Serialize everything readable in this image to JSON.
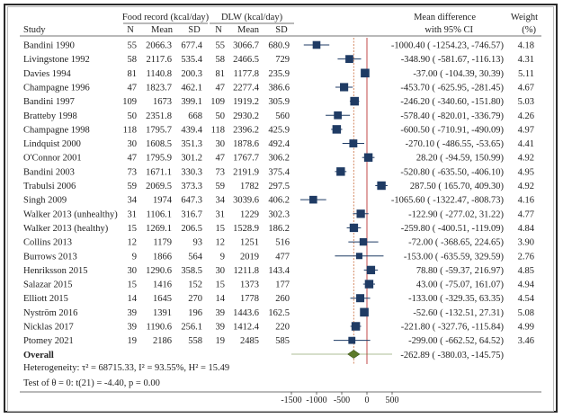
{
  "headers": {
    "study": "Study",
    "food_group": "Food record (kcal/day)",
    "dlw_group": "DLW (kcal/day)",
    "n": "N",
    "mean": "Mean",
    "sd": "SD",
    "md_line1": "Mean difference",
    "md_line2": "with 95% CI",
    "weight_line1": "Weight",
    "weight_line2": "(%)"
  },
  "overall": {
    "label": "Overall",
    "md": -262.89,
    "lo": -380.03,
    "hi": -145.75,
    "ci_text": "-262.89 ( -380.03, -145.75)",
    "heterogeneity": "Heterogeneity: τ² = 68715.33, I² = 93.55%, H² = 15.49",
    "test": "Test of θ = 0: t(21) = -4.40, p = 0.00"
  },
  "colors": {
    "marker": "#1f3b64",
    "ci_line": "#1f3b64",
    "overall_diamond": "#5d7a2a",
    "overall_line": "#c96a3a",
    "null_line": "#c24a4a"
  },
  "chart_data": {
    "type": "forest",
    "title": "",
    "xlabel": "Mean difference with 95% CI",
    "xlim": [
      -1500,
      500
    ],
    "xticks": [
      -1500,
      -1000,
      -500,
      0,
      500
    ],
    "studies": [
      {
        "study": "Bandini 1990",
        "fr_n": "55",
        "fr_mean": "2066.3",
        "fr_sd": "677.4",
        "dlw_n": "55",
        "dlw_mean": "3066.7",
        "dlw_sd": "680.9",
        "md": -1000.4,
        "lo": -1254.23,
        "hi": -746.57,
        "ci_text": "-1000.40 ( -1254.23,  -746.57)",
        "weight": "4.18"
      },
      {
        "study": "Livingstone 1992",
        "fr_n": "58",
        "fr_mean": "2117.6",
        "fr_sd": "535.4",
        "dlw_n": "58",
        "dlw_mean": "2466.5",
        "dlw_sd": "729",
        "md": -348.9,
        "lo": -581.67,
        "hi": -116.13,
        "ci_text": "-348.90 ( -581.67,  -116.13)",
        "weight": "4.31"
      },
      {
        "study": "Davies 1994",
        "fr_n": "81",
        "fr_mean": "1140.8",
        "fr_sd": "200.3",
        "dlw_n": "81",
        "dlw_mean": "1177.8",
        "dlw_sd": "235.9",
        "md": -37.0,
        "lo": -104.39,
        "hi": 30.39,
        "ci_text": "-37.00 ( -104.39,  30.39)",
        "weight": "5.11"
      },
      {
        "study": "Champagne 1996",
        "fr_n": "47",
        "fr_mean": "1823.7",
        "fr_sd": "462.1",
        "dlw_n": "47",
        "dlw_mean": "2277.4",
        "dlw_sd": "386.6",
        "md": -453.7,
        "lo": -625.95,
        "hi": -281.45,
        "ci_text": "-453.70 ( -625.95,  -281.45)",
        "weight": "4.67"
      },
      {
        "study": "Bandini 1997",
        "fr_n": "109",
        "fr_mean": "1673",
        "fr_sd": "399.1",
        "dlw_n": "109",
        "dlw_mean": "1919.2",
        "dlw_sd": "305.9",
        "md": -246.2,
        "lo": -340.6,
        "hi": -151.8,
        "ci_text": "-246.20 ( -340.60,  -151.80)",
        "weight": "5.03"
      },
      {
        "study": "Bratteby 1998",
        "fr_n": "50",
        "fr_mean": "2351.8",
        "fr_sd": "668",
        "dlw_n": "50",
        "dlw_mean": "2930.2",
        "dlw_sd": "560",
        "md": -578.4,
        "lo": -820.01,
        "hi": -336.79,
        "ci_text": "-578.40 ( -820.01,  -336.79)",
        "weight": "4.26"
      },
      {
        "study": "Champagne 1998",
        "fr_n": "118",
        "fr_mean": "1795.7",
        "fr_sd": "439.4",
        "dlw_n": "118",
        "dlw_mean": "2396.2",
        "dlw_sd": "425.9",
        "md": -600.5,
        "lo": -710.91,
        "hi": -490.09,
        "ci_text": "-600.50 ( -710.91,  -490.09)",
        "weight": "4.97"
      },
      {
        "study": "Lindquist 2000",
        "fr_n": "30",
        "fr_mean": "1608.5",
        "fr_sd": "351.3",
        "dlw_n": "30",
        "dlw_mean": "1878.6",
        "dlw_sd": "492.4",
        "md": -270.1,
        "lo": -486.55,
        "hi": -53.65,
        "ci_text": "-270.10 ( -486.55,  -53.65)",
        "weight": "4.41"
      },
      {
        "study": "O'Connor 2001",
        "fr_n": "47",
        "fr_mean": "1795.9",
        "fr_sd": "301.2",
        "dlw_n": "47",
        "dlw_mean": "1767.7",
        "dlw_sd": "306.2",
        "md": 28.2,
        "lo": -94.59,
        "hi": 150.99,
        "ci_text": "28.20 ( -94.59,  150.99)",
        "weight": "4.92"
      },
      {
        "study": "Bandini 2003",
        "fr_n": "73",
        "fr_mean": "1671.1",
        "fr_sd": "330.3",
        "dlw_n": "73",
        "dlw_mean": "2191.9",
        "dlw_sd": "375.4",
        "md": -520.8,
        "lo": -635.5,
        "hi": -406.1,
        "ci_text": "-520.80 ( -635.50,  -406.10)",
        "weight": "4.95"
      },
      {
        "study": "Trabulsi 2006",
        "fr_n": "59",
        "fr_mean": "2069.5",
        "fr_sd": "373.3",
        "dlw_n": "59",
        "dlw_mean": "1782",
        "dlw_sd": "297.5",
        "md": 287.5,
        "lo": 165.7,
        "hi": 409.3,
        "ci_text": "287.50 ( 165.70,  409.30)",
        "weight": "4.92"
      },
      {
        "study": "Singh 2009",
        "fr_n": "34",
        "fr_mean": "1974",
        "fr_sd": "647.3",
        "dlw_n": "34",
        "dlw_mean": "3039.6",
        "dlw_sd": "406.2",
        "md": -1065.6,
        "lo": -1322.47,
        "hi": -808.73,
        "ci_text": "-1065.60 ( -1322.47,  -808.73)",
        "weight": "4.16"
      },
      {
        "study": "Walker 2013 (unhealthy)",
        "fr_n": "31",
        "fr_mean": "1106.1",
        "fr_sd": "316.7",
        "dlw_n": "31",
        "dlw_mean": "1229",
        "dlw_sd": "302.3",
        "md": -122.9,
        "lo": -277.02,
        "hi": 31.22,
        "ci_text": "-122.90 ( -277.02,  31.22)",
        "weight": "4.77"
      },
      {
        "study": "Walker 2013 (healthy)",
        "fr_n": "15",
        "fr_mean": "1269.1",
        "fr_sd": "206.5",
        "dlw_n": "15",
        "dlw_mean": "1528.9",
        "dlw_sd": "186.2",
        "md": -259.8,
        "lo": -400.51,
        "hi": -119.09,
        "ci_text": "-259.80 ( -400.51,  -119.09)",
        "weight": "4.84"
      },
      {
        "study": "Collins 2013",
        "fr_n": "12",
        "fr_mean": "1179",
        "fr_sd": "93",
        "dlw_n": "12",
        "dlw_mean": "1251",
        "dlw_sd": "516",
        "md": -72.0,
        "lo": -368.65,
        "hi": 224.65,
        "ci_text": "-72.00 ( -368.65,  224.65)",
        "weight": "3.90"
      },
      {
        "study": "Burrows 2013",
        "fr_n": "9",
        "fr_mean": "1866",
        "fr_sd": "564",
        "dlw_n": "9",
        "dlw_mean": "2019",
        "dlw_sd": "477",
        "md": -153.0,
        "lo": -635.59,
        "hi": 329.59,
        "ci_text": "-153.00 ( -635.59,  329.59)",
        "weight": "2.76"
      },
      {
        "study": "Henriksson 2015",
        "fr_n": "30",
        "fr_mean": "1290.6",
        "fr_sd": "358.5",
        "dlw_n": "30",
        "dlw_mean": "1211.8",
        "dlw_sd": "143.4",
        "md": 78.8,
        "lo": -59.37,
        "hi": 216.97,
        "ci_text": "78.80 ( -59.37,  216.97)",
        "weight": "4.85"
      },
      {
        "study": "Salazar 2015",
        "fr_n": "15",
        "fr_mean": "1416",
        "fr_sd": "152",
        "dlw_n": "15",
        "dlw_mean": "1373",
        "dlw_sd": "177",
        "md": 43.0,
        "lo": -75.07,
        "hi": 161.07,
        "ci_text": "43.00 ( -75.07,  161.07)",
        "weight": "4.94"
      },
      {
        "study": "Elliott 2015",
        "fr_n": "14",
        "fr_mean": "1645",
        "fr_sd": "270",
        "dlw_n": "14",
        "dlw_mean": "1778",
        "dlw_sd": "260",
        "md": -133.0,
        "lo": -329.35,
        "hi": 63.35,
        "ci_text": "-133.00 ( -329.35,  63.35)",
        "weight": "4.54"
      },
      {
        "study": "Nyström 2016",
        "fr_n": "39",
        "fr_mean": "1391",
        "fr_sd": "196",
        "dlw_n": "39",
        "dlw_mean": "1443.6",
        "dlw_sd": "162.5",
        "md": -52.6,
        "lo": -132.51,
        "hi": 27.31,
        "ci_text": "-52.60 ( -132.51,  27.31)",
        "weight": "5.08"
      },
      {
        "study": "Nicklas 2017",
        "fr_n": "39",
        "fr_mean": "1190.6",
        "fr_sd": "256.1",
        "dlw_n": "39",
        "dlw_mean": "1412.4",
        "dlw_sd": "220",
        "md": -221.8,
        "lo": -327.76,
        "hi": -115.84,
        "ci_text": "-221.80 ( -327.76,  -115.84)",
        "weight": "4.99"
      },
      {
        "study": "Ptomey 2021",
        "fr_n": "19",
        "fr_mean": "2186",
        "fr_sd": "558",
        "dlw_n": "19",
        "dlw_mean": "2485",
        "dlw_sd": "585",
        "md": -299.0,
        "lo": -662.52,
        "hi": 64.52,
        "ci_text": "-299.00 ( -662.52,  64.52)",
        "weight": "3.46"
      }
    ]
  }
}
